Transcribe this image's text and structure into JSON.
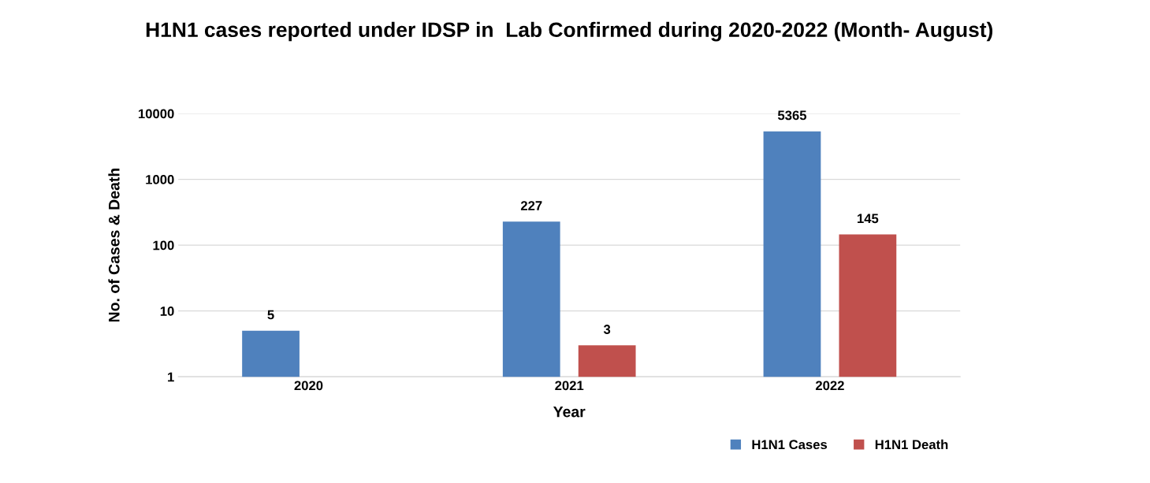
{
  "chart_data": {
    "type": "bar",
    "title": "H1N1 cases reported under IDSP in  Lab Confirmed during 2020-2022 (Month- August)",
    "xlabel": "Year",
    "ylabel": "No. of Cases & Death",
    "categories": [
      "2020",
      "2021",
      "2022"
    ],
    "series": [
      {
        "name": "H1N1 Cases",
        "color": "#4f81bd",
        "values": [
          5,
          227,
          5365
        ]
      },
      {
        "name": "H1N1 Death",
        "color": "#c0504d",
        "values": [
          null,
          3,
          145
        ]
      }
    ],
    "log": true,
    "ylim": [
      1,
      10000
    ],
    "yticks": [
      1,
      10,
      100,
      1000,
      10000
    ],
    "grid": "y",
    "legend": "bottom right",
    "data_labels": true
  }
}
